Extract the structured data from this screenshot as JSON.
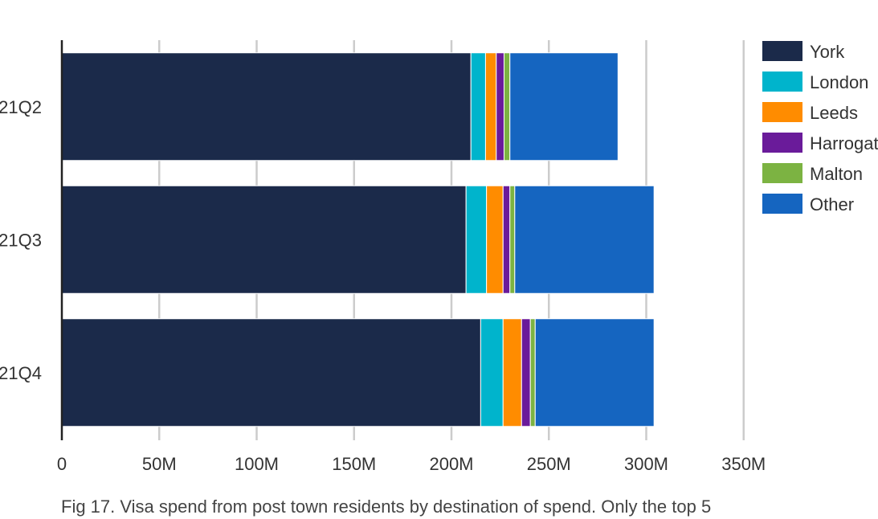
{
  "chart_data": {
    "type": "bar",
    "orientation": "horizontal",
    "stacked": true,
    "categories": [
      "21Q2",
      "21Q3",
      "21Q4"
    ],
    "series": [
      {
        "name": "York",
        "color": "#1b2a4a",
        "values": [
          210,
          207.5,
          215
        ]
      },
      {
        "name": "London",
        "color": "#00b4cc",
        "values": [
          7.5,
          10.5,
          11.5
        ]
      },
      {
        "name": "Leeds",
        "color": "#ff8c00",
        "values": [
          5.5,
          8.5,
          9.5
        ]
      },
      {
        "name": "Harrogate",
        "color": "#6a1b9a",
        "values": [
          4,
          3.5,
          4.5
        ]
      },
      {
        "name": "Malton",
        "color": "#7cb342",
        "values": [
          3,
          2.5,
          2.5
        ]
      },
      {
        "name": "Other",
        "color": "#1565c0",
        "values": [
          55.5,
          71.5,
          61
        ]
      }
    ],
    "xlim": [
      0,
      350
    ],
    "x_ticks": [
      {
        "value": 0,
        "label": "0"
      },
      {
        "value": 50,
        "label": "50M"
      },
      {
        "value": 100,
        "label": "100M"
      },
      {
        "value": 150,
        "label": "150M"
      },
      {
        "value": 200,
        "label": "200M"
      },
      {
        "value": 250,
        "label": "250M"
      },
      {
        "value": 300,
        "label": "300M"
      },
      {
        "value": 350,
        "label": "350M"
      }
    ],
    "grid": true,
    "legend_position": "right",
    "caption": "Fig 17. Visa spend from post town residents by destination of spend. Only the top 5"
  }
}
